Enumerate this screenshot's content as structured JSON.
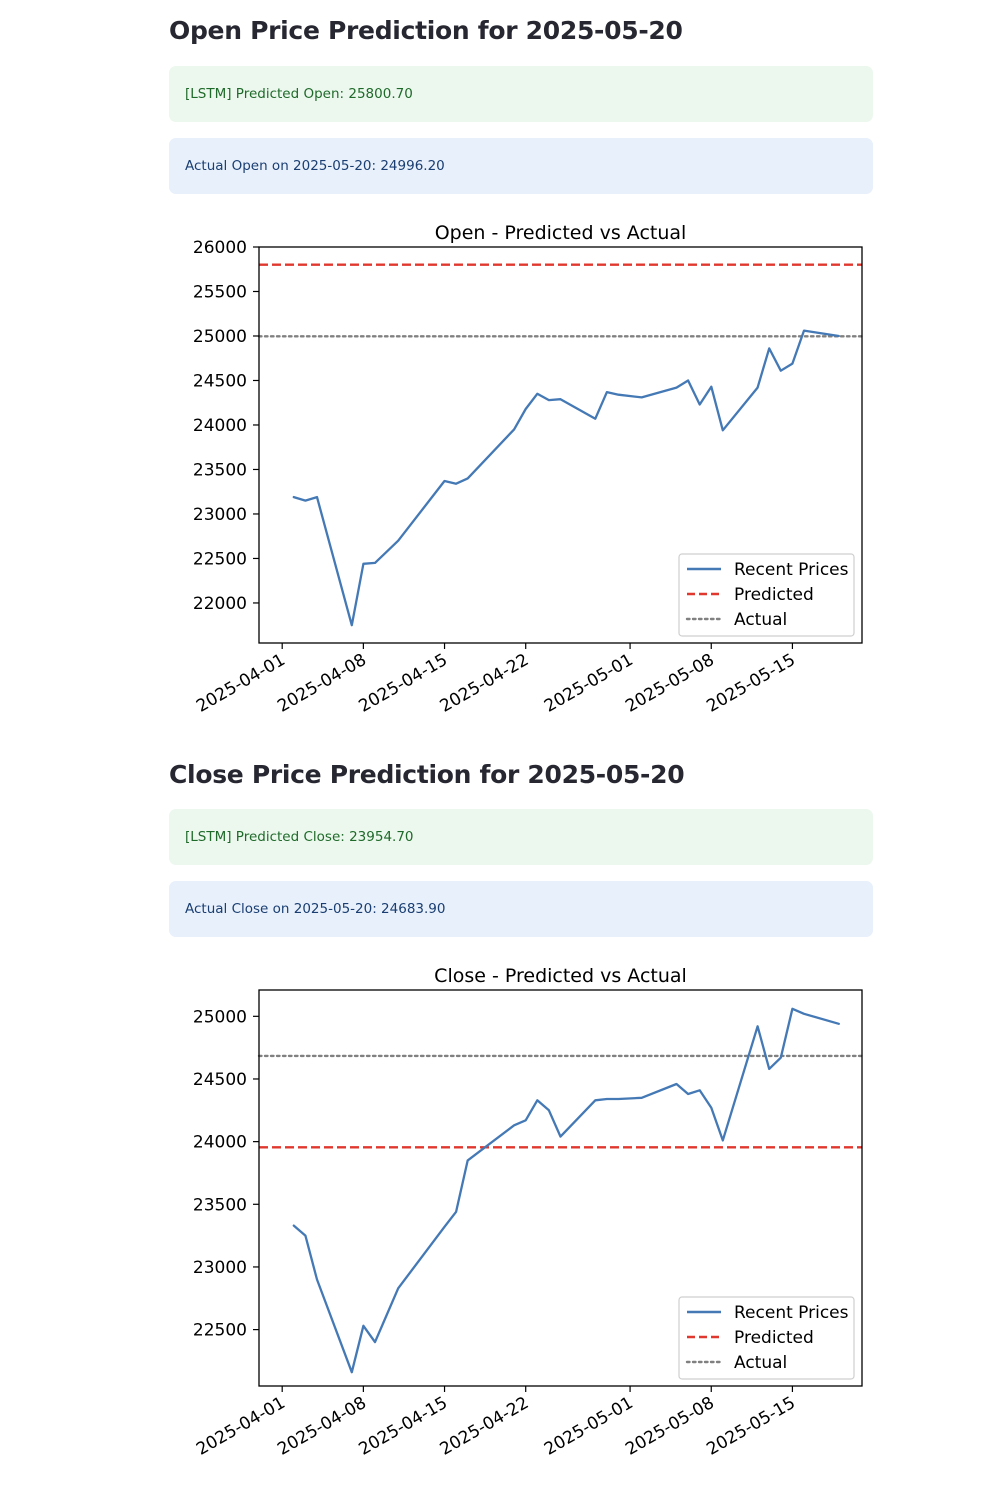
{
  "open_section": {
    "heading": "Open Price Prediction for 2025-05-20",
    "predicted_msg": "[LSTM] Predicted Open: 25800.70",
    "actual_msg": "Actual Open on 2025-05-20: 24996.20"
  },
  "close_section": {
    "heading": "Close Price Prediction for 2025-05-20",
    "predicted_msg": "[LSTM] Predicted Close: 23954.70",
    "actual_msg": "Actual Close on 2025-05-20: 24683.90"
  },
  "colors": {
    "recent": "#4479b5",
    "predicted": "#e0382e",
    "actual": "#808080",
    "success_bg": "#ecf8ee",
    "info_bg": "#e8f0fb"
  },
  "chart_data": [
    {
      "type": "line",
      "title": "Open - Predicted vs Actual",
      "xlabel": "",
      "ylabel": "",
      "ylim": [
        21550,
        26000
      ],
      "xlim": [
        "2025-03-30",
        "2025-05-21"
      ],
      "yticks": [
        22000,
        22500,
        23000,
        23500,
        24000,
        24500,
        25000,
        25500,
        26000
      ],
      "xticks": [
        "2025-04-01",
        "2025-04-08",
        "2025-04-15",
        "2025-04-22",
        "2025-05-01",
        "2025-05-08",
        "2025-05-15"
      ],
      "grid": false,
      "legend_position": "lower right",
      "legend": [
        "Recent Prices",
        "Predicted",
        "Actual"
      ],
      "series": [
        {
          "name": "Recent Prices",
          "style": "solid",
          "points": [
            [
              "2025-04-02",
              23190
            ],
            [
              "2025-04-03",
              23150
            ],
            [
              "2025-04-04",
              23190
            ],
            [
              "2025-04-07",
              21750
            ],
            [
              "2025-04-08",
              22440
            ],
            [
              "2025-04-09",
              22450
            ],
            [
              "2025-04-11",
              22700
            ],
            [
              "2025-04-15",
              23370
            ],
            [
              "2025-04-16",
              23340
            ],
            [
              "2025-04-17",
              23400
            ],
            [
              "2025-04-21",
              23950
            ],
            [
              "2025-04-22",
              24180
            ],
            [
              "2025-04-23",
              24350
            ],
            [
              "2025-04-24",
              24280
            ],
            [
              "2025-04-25",
              24290
            ],
            [
              "2025-04-28",
              24070
            ],
            [
              "2025-04-29",
              24370
            ],
            [
              "2025-04-30",
              24340
            ],
            [
              "2025-05-02",
              24310
            ],
            [
              "2025-05-05",
              24420
            ],
            [
              "2025-05-06",
              24500
            ],
            [
              "2025-05-07",
              24230
            ],
            [
              "2025-05-08",
              24430
            ],
            [
              "2025-05-09",
              23940
            ],
            [
              "2025-05-12",
              24420
            ],
            [
              "2025-05-13",
              24860
            ],
            [
              "2025-05-14",
              24610
            ],
            [
              "2025-05-15",
              24690
            ],
            [
              "2025-05-16",
              25060
            ],
            [
              "2025-05-19",
              25000
            ]
          ]
        },
        {
          "name": "Predicted",
          "style": "dashed",
          "y": 25800.7
        },
        {
          "name": "Actual",
          "style": "dotted",
          "y": 24996.2
        }
      ]
    },
    {
      "type": "line",
      "title": "Close - Predicted vs Actual",
      "xlabel": "",
      "ylabel": "",
      "ylim": [
        22050,
        25210
      ],
      "xlim": [
        "2025-03-30",
        "2025-05-21"
      ],
      "yticks": [
        22500,
        23000,
        23500,
        24000,
        24500,
        25000
      ],
      "xticks": [
        "2025-04-01",
        "2025-04-08",
        "2025-04-15",
        "2025-04-22",
        "2025-05-01",
        "2025-05-08",
        "2025-05-15"
      ],
      "grid": false,
      "legend_position": "lower right",
      "legend": [
        "Recent Prices",
        "Predicted",
        "Actual"
      ],
      "series": [
        {
          "name": "Recent Prices",
          "style": "solid",
          "points": [
            [
              "2025-04-02",
              23330
            ],
            [
              "2025-04-03",
              23250
            ],
            [
              "2025-04-04",
              22900
            ],
            [
              "2025-04-07",
              22160
            ],
            [
              "2025-04-08",
              22530
            ],
            [
              "2025-04-09",
              22400
            ],
            [
              "2025-04-11",
              22830
            ],
            [
              "2025-04-15",
              23320
            ],
            [
              "2025-04-16",
              23440
            ],
            [
              "2025-04-17",
              23850
            ],
            [
              "2025-04-21",
              24130
            ],
            [
              "2025-04-22",
              24170
            ],
            [
              "2025-04-23",
              24330
            ],
            [
              "2025-04-24",
              24250
            ],
            [
              "2025-04-25",
              24040
            ],
            [
              "2025-04-28",
              24330
            ],
            [
              "2025-04-29",
              24340
            ],
            [
              "2025-04-30",
              24340
            ],
            [
              "2025-05-02",
              24350
            ],
            [
              "2025-05-05",
              24460
            ],
            [
              "2025-05-06",
              24380
            ],
            [
              "2025-05-07",
              24410
            ],
            [
              "2025-05-08",
              24270
            ],
            [
              "2025-05-09",
              24010
            ],
            [
              "2025-05-12",
              24920
            ],
            [
              "2025-05-13",
              24580
            ],
            [
              "2025-05-14",
              24670
            ],
            [
              "2025-05-15",
              25060
            ],
            [
              "2025-05-16",
              25020
            ],
            [
              "2025-05-19",
              24940
            ]
          ]
        },
        {
          "name": "Predicted",
          "style": "dashed",
          "y": 23954.7
        },
        {
          "name": "Actual",
          "style": "dotted",
          "y": 24683.9
        }
      ]
    }
  ]
}
